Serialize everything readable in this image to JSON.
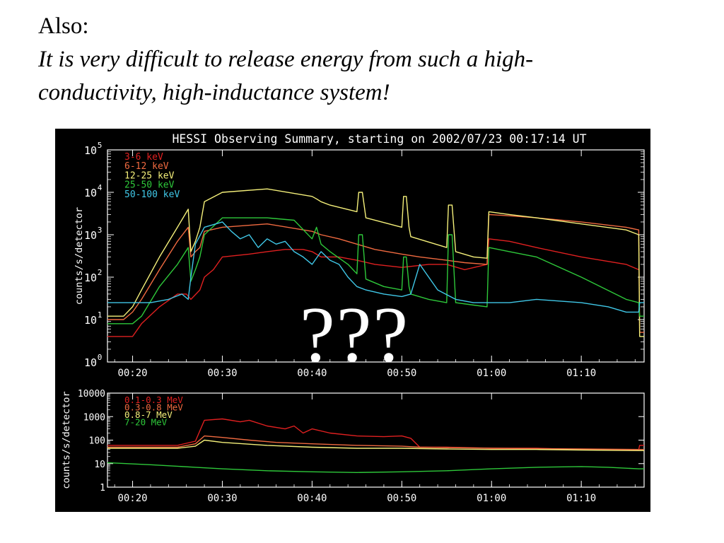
{
  "heading": {
    "line1": "Also:",
    "line2": "It is very difficult to release energy from such a high-",
    "line3": "conductivity, high-inductance system!"
  },
  "overlay": {
    "text": "???"
  },
  "colors": {
    "red": "#e02020",
    "orange": "#f06a40",
    "yellow": "#f5f07a",
    "green": "#2ec83a",
    "cyan": "#40c8e8",
    "white": "#ffffff",
    "black": "#000000"
  },
  "chart_data": [
    {
      "type": "line",
      "title": "HESSI Observing Summary, starting on 2002/07/23 00:17:14 UT",
      "xlabel": "",
      "ylabel": "counts/s/detector",
      "yscale": "log",
      "ylim": [
        1,
        100000
      ],
      "xlim": [
        17.2,
        77.0
      ],
      "xticks": [
        {
          "v": 20,
          "label": "00:20"
        },
        {
          "v": 30,
          "label": "00:30"
        },
        {
          "v": 40,
          "label": "00:40"
        },
        {
          "v": 50,
          "label": "00:50"
        },
        {
          "v": 60,
          "label": "01:00"
        },
        {
          "v": 70,
          "label": "01:10"
        }
      ],
      "ytick_exps": [
        0,
        1,
        2,
        3,
        4,
        5
      ],
      "legend_position": "top-left",
      "series": [
        {
          "name": "3-6 keV",
          "color": "#e02020",
          "x": [
            17.2,
            20,
            21,
            23,
            25,
            26,
            26.5,
            27.5,
            28,
            29,
            30,
            33,
            35,
            37,
            39,
            40,
            41,
            43,
            45,
            47,
            50,
            53,
            55,
            57,
            59.5,
            59.7,
            62,
            65,
            70,
            75,
            76.4
          ],
          "y": [
            4,
            4,
            8,
            20,
            40,
            40,
            30,
            50,
            100,
            150,
            300,
            350,
            400,
            450,
            450,
            400,
            300,
            300,
            250,
            200,
            170,
            200,
            200,
            150,
            200,
            800,
            700,
            500,
            300,
            200,
            150
          ]
        },
        {
          "name": "6-12 keV",
          "color": "#f06a40",
          "x": [
            17.2,
            19,
            20,
            21,
            23,
            25,
            26.2,
            26.5,
            27,
            27.5,
            28,
            30,
            35,
            40,
            41,
            43,
            45,
            47,
            50,
            52,
            55,
            57,
            59.5,
            59.7,
            62,
            65,
            70,
            75,
            76.4,
            76.5,
            77
          ],
          "y": [
            10,
            10,
            15,
            30,
            150,
            700,
            1500,
            300,
            400,
            500,
            1200,
            1500,
            1800,
            1200,
            1000,
            800,
            600,
            450,
            350,
            300,
            250,
            220,
            200,
            3000,
            2800,
            2500,
            2000,
            1500,
            1300,
            5,
            5
          ]
        },
        {
          "name": "12-25 keV",
          "color": "#f5f07a",
          "x": [
            17.2,
            19,
            20,
            21,
            23,
            25,
            26.2,
            26.5,
            27,
            27.5,
            28,
            30,
            35,
            40,
            40.5,
            41,
            42,
            45,
            45.2,
            45.6,
            46,
            50,
            50.2,
            50.5,
            50.8,
            51,
            55,
            55.2,
            55.6,
            56,
            58,
            59.5,
            59.7,
            62,
            65,
            70,
            75,
            76.4,
            76.5,
            77
          ],
          "y": [
            12,
            12,
            20,
            50,
            300,
            1500,
            4000,
            400,
            700,
            1500,
            6000,
            10000,
            12000,
            8000,
            7000,
            6000,
            5000,
            3500,
            10000,
            10000,
            2500,
            1500,
            8000,
            8000,
            1500,
            900,
            500,
            5000,
            5000,
            400,
            300,
            280,
            3500,
            3000,
            2500,
            1800,
            1300,
            1000,
            4,
            4
          ]
        },
        {
          "name": "25-50 keV",
          "color": "#2ec83a",
          "x": [
            17.2,
            20,
            21,
            23,
            25,
            26.2,
            26.5,
            27,
            27.5,
            28,
            30,
            35,
            38,
            40,
            40.5,
            41,
            42,
            44,
            45,
            45.2,
            45.6,
            46,
            48,
            50,
            50.2,
            50.5,
            50.8,
            51,
            53,
            55,
            55.2,
            55.6,
            56,
            58,
            59.5,
            59.7,
            62,
            65,
            70,
            75,
            76.4,
            76.5,
            77
          ],
          "y": [
            8,
            8,
            12,
            60,
            200,
            500,
            80,
            150,
            300,
            1000,
            2500,
            2500,
            2200,
            800,
            1500,
            600,
            400,
            200,
            120,
            1000,
            1000,
            90,
            60,
            50,
            300,
            300,
            60,
            40,
            30,
            25,
            1000,
            1000,
            25,
            22,
            20,
            500,
            400,
            300,
            100,
            30,
            25,
            12,
            12
          ]
        },
        {
          "name": "50-100 keV",
          "color": "#40c8e8",
          "x": [
            17.2,
            20,
            22,
            24,
            25.5,
            26.2,
            26.5,
            27,
            28,
            30,
            31,
            32,
            33,
            34,
            35,
            36,
            37,
            38,
            39,
            40,
            41,
            42,
            43,
            44,
            45,
            46,
            48,
            50,
            51,
            52,
            54,
            56,
            58,
            60,
            62,
            65,
            70,
            73,
            75,
            76.4,
            76.5,
            77
          ],
          "y": [
            25,
            25,
            25,
            30,
            40,
            30,
            100,
            600,
            1500,
            2000,
            1200,
            800,
            1000,
            500,
            800,
            600,
            700,
            400,
            300,
            200,
            400,
            250,
            200,
            100,
            60,
            50,
            40,
            35,
            40,
            200,
            50,
            30,
            25,
            25,
            25,
            30,
            25,
            20,
            15,
            15,
            25,
            25
          ]
        }
      ]
    },
    {
      "type": "line",
      "title": "",
      "xlabel": "",
      "ylabel": "counts/s/detector",
      "yscale": "log",
      "ylim": [
        1,
        10000
      ],
      "xlim": [
        17.2,
        77.0
      ],
      "xticks": [
        {
          "v": 20,
          "label": "00:20"
        },
        {
          "v": 30,
          "label": "00:30"
        },
        {
          "v": 40,
          "label": "00:40"
        },
        {
          "v": 50,
          "label": "00:50"
        },
        {
          "v": 60,
          "label": "01:00"
        },
        {
          "v": 70,
          "label": "01:10"
        }
      ],
      "ytick_values": [
        1,
        10,
        100,
        1000,
        10000
      ],
      "ytick_labels": [
        "1",
        "10",
        "100",
        "1000",
        "10000"
      ],
      "legend_position": "top-left",
      "series": [
        {
          "name": "0.1-0.3 MeV",
          "color": "#e02020",
          "x": [
            17.2,
            25,
            27,
            28,
            30,
            32,
            33,
            35,
            37,
            38,
            39,
            40,
            42,
            45,
            48,
            50,
            51,
            52,
            55,
            60,
            65,
            70,
            75,
            76.4,
            76.5,
            77
          ],
          "y": [
            60,
            60,
            90,
            700,
            800,
            600,
            700,
            400,
            300,
            400,
            200,
            300,
            200,
            150,
            140,
            150,
            120,
            50,
            50,
            45,
            45,
            40,
            40,
            40,
            60,
            60
          ]
        },
        {
          "name": "0.3-0.8 MeV",
          "color": "#f06a40",
          "x": [
            17.2,
            25,
            27,
            28,
            30,
            33,
            36,
            40,
            45,
            50,
            52,
            60,
            70,
            76.4,
            77
          ],
          "y": [
            50,
            50,
            70,
            150,
            130,
            100,
            80,
            70,
            60,
            55,
            50,
            45,
            42,
            40,
            40
          ]
        },
        {
          "name": "0.8-7 MeV",
          "color": "#f5f07a",
          "x": [
            17.2,
            25,
            27,
            28,
            30,
            35,
            40,
            45,
            50,
            55,
            60,
            65,
            70,
            76.4,
            77
          ],
          "y": [
            45,
            45,
            55,
            100,
            80,
            60,
            50,
            45,
            45,
            42,
            40,
            40,
            38,
            36,
            36
          ]
        },
        {
          "name": "7-20 MeV",
          "color": "#2ec83a",
          "x": [
            17.2,
            22,
            27,
            30,
            35,
            40,
            45,
            50,
            55,
            60,
            65,
            70,
            73,
            76.4,
            77
          ],
          "y": [
            11,
            9,
            7,
            6,
            5,
            4.5,
            4.2,
            4.5,
            5,
            6,
            7,
            7.5,
            7,
            6,
            6
          ]
        }
      ]
    }
  ]
}
